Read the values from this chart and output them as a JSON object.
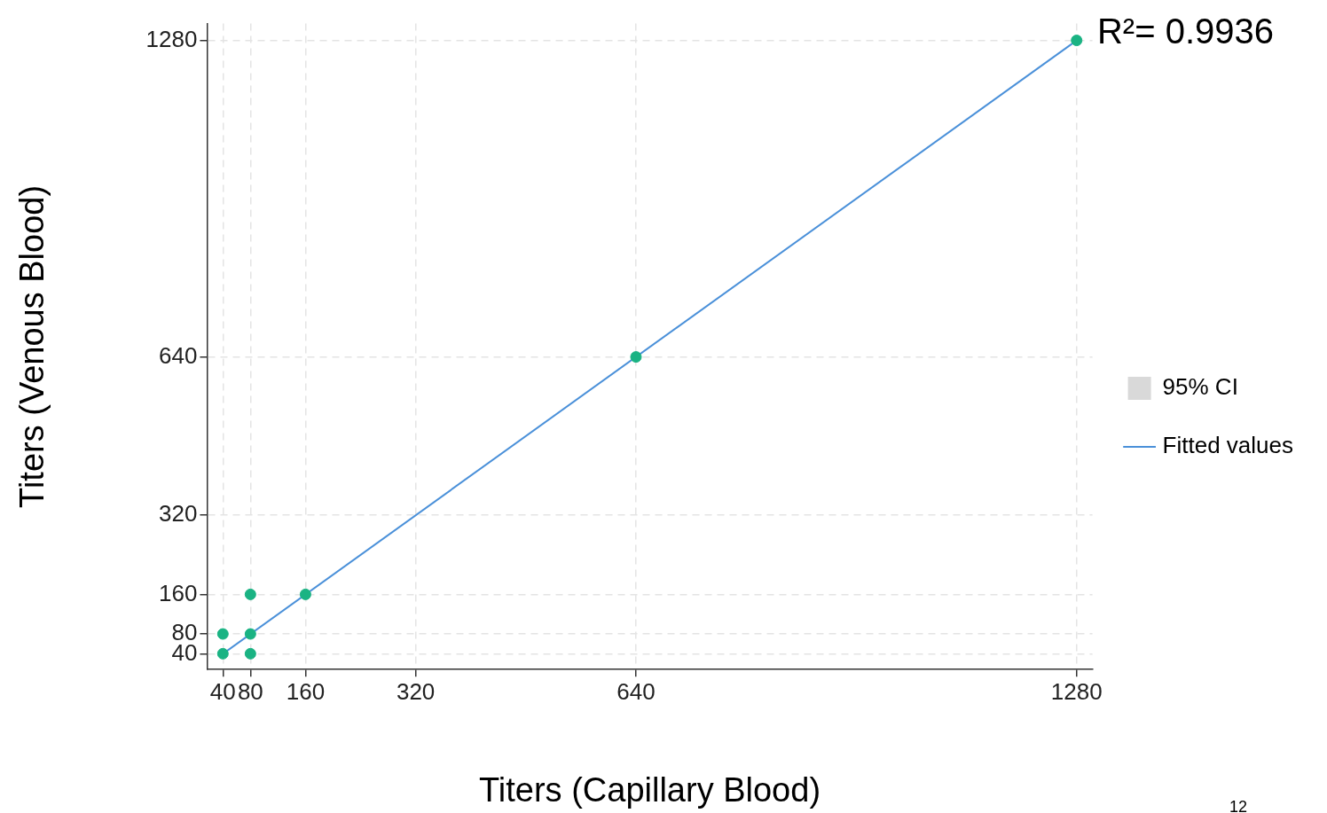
{
  "chart_data": {
    "type": "scatter",
    "xlabel": "Titers (Capillary Blood)",
    "ylabel": "Titers (Venous Blood)",
    "xlim": [
      17,
      1303
    ],
    "ylim": [
      8,
      1314
    ],
    "xticks": [
      40,
      80,
      160,
      320,
      640,
      1280
    ],
    "yticks": [
      40,
      80,
      160,
      320,
      640,
      1280
    ],
    "grid": true,
    "legend": "right",
    "annotations": [
      "R²= 0.9936",
      "12"
    ],
    "series": [
      {
        "name": "95% CI",
        "type": "area",
        "marker": "none",
        "color": "#d9d9d9"
      },
      {
        "name": "Fitted values",
        "type": "line",
        "marker": "none",
        "color": "#4a90d9",
        "x": [
          40,
          1280
        ],
        "values": [
          40,
          1280
        ]
      },
      {
        "marker": "circle",
        "color": "#1ab383",
        "x": [
          40,
          40,
          80,
          80,
          80,
          160,
          640,
          1280
        ],
        "values": [
          40,
          80,
          40,
          80,
          160,
          160,
          640,
          1280
        ]
      }
    ]
  }
}
